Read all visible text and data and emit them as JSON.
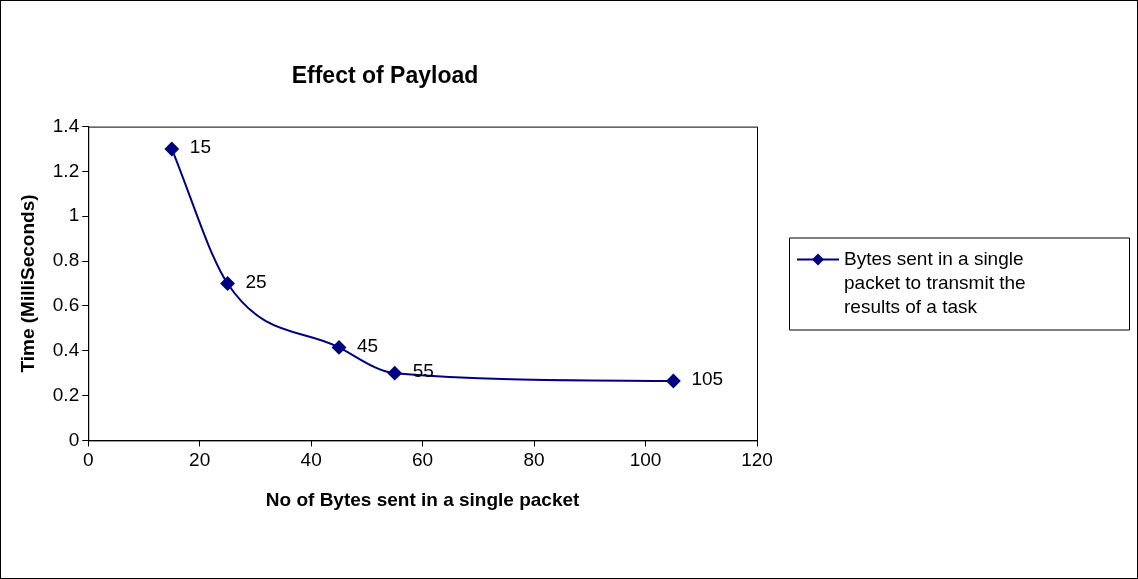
{
  "chart_data": {
    "type": "line",
    "title": "Effect of Payload",
    "xlabel": "No of Bytes sent in a single packet",
    "ylabel": "Time (MilliSeconds)",
    "x": [
      15,
      25,
      45,
      55,
      105
    ],
    "series": [
      {
        "name": "Bytes sent in a single packet to transmit the results of a task",
        "color": "#000080",
        "values": [
          1.3,
          0.7,
          0.415,
          0.3,
          0.265
        ]
      }
    ],
    "annotations": [
      {
        "text": "15",
        "x": 15,
        "y": 1.3
      },
      {
        "text": "25",
        "x": 25,
        "y": 0.7
      },
      {
        "text": "45",
        "x": 45,
        "y": 0.415
      },
      {
        "text": "55",
        "x": 55,
        "y": 0.3
      },
      {
        "text": "105",
        "x": 105,
        "y": 0.265
      }
    ],
    "xlim": [
      0,
      120
    ],
    "xticks": [
      0,
      20,
      40,
      60,
      80,
      100,
      120
    ],
    "ylim": [
      0,
      1.4
    ],
    "yticks": [
      0,
      0.2,
      0.4,
      0.6,
      0.8,
      1,
      1.2,
      1.4
    ],
    "grid": false,
    "legend": "right",
    "marker": "diamond",
    "line_style": "solid"
  }
}
